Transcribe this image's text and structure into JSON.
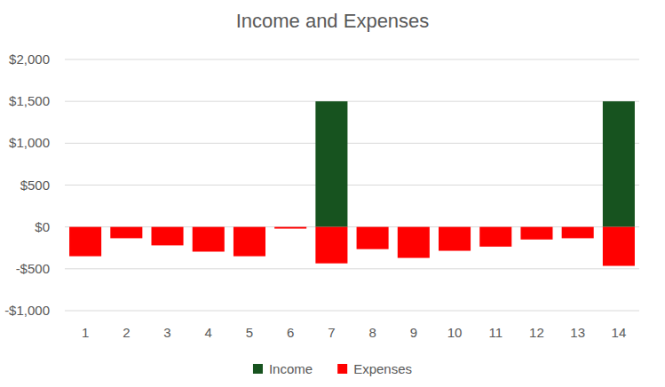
{
  "chart_data": {
    "type": "bar",
    "title": "Income and Expenses",
    "categories": [
      "1",
      "2",
      "3",
      "4",
      "5",
      "6",
      "7",
      "8",
      "9",
      "10",
      "11",
      "12",
      "13",
      "14"
    ],
    "series": [
      {
        "name": "Income",
        "color": "#17531f",
        "values": [
          0,
          0,
          0,
          0,
          0,
          0,
          1500,
          0,
          0,
          0,
          0,
          0,
          0,
          1500
        ]
      },
      {
        "name": "Expenses",
        "color": "#ff0000",
        "values": [
          -350,
          -135,
          -220,
          -295,
          -350,
          -20,
          -435,
          -265,
          -370,
          -285,
          -235,
          -150,
          -135,
          -465
        ]
      }
    ],
    "ylim": [
      -1000,
      2000
    ],
    "yticks": [
      {
        "value": -1000,
        "label": "-$1,000"
      },
      {
        "value": -500,
        "label": "-$500"
      },
      {
        "value": 0,
        "label": "$0"
      },
      {
        "value": 500,
        "label": "$500"
      },
      {
        "value": 1000,
        "label": "$1,000"
      },
      {
        "value": 1500,
        "label": "$1,500"
      },
      {
        "value": 2000,
        "label": "$2,000"
      }
    ],
    "stacked": true,
    "grid": true,
    "legend": "bottom"
  }
}
